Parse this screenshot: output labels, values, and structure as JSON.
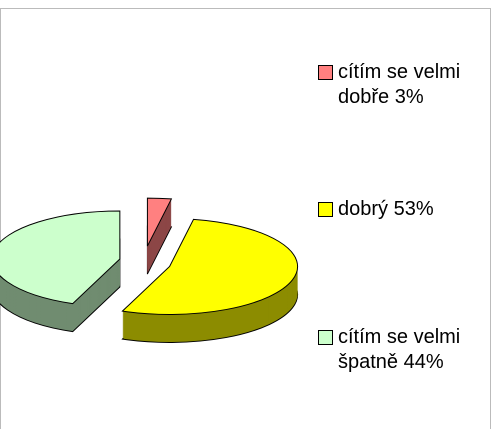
{
  "chart_data": {
    "type": "pie",
    "categories": [
      "cítím se velmi dobře",
      "dobrý",
      "cítím se velmi špatně"
    ],
    "values": [
      3,
      53,
      44
    ],
    "value_labels": [
      "3%",
      "53%",
      "44%"
    ],
    "colors": [
      "#ff8080",
      "#ffff00",
      "#ccffcc"
    ],
    "legend": "right"
  }
}
